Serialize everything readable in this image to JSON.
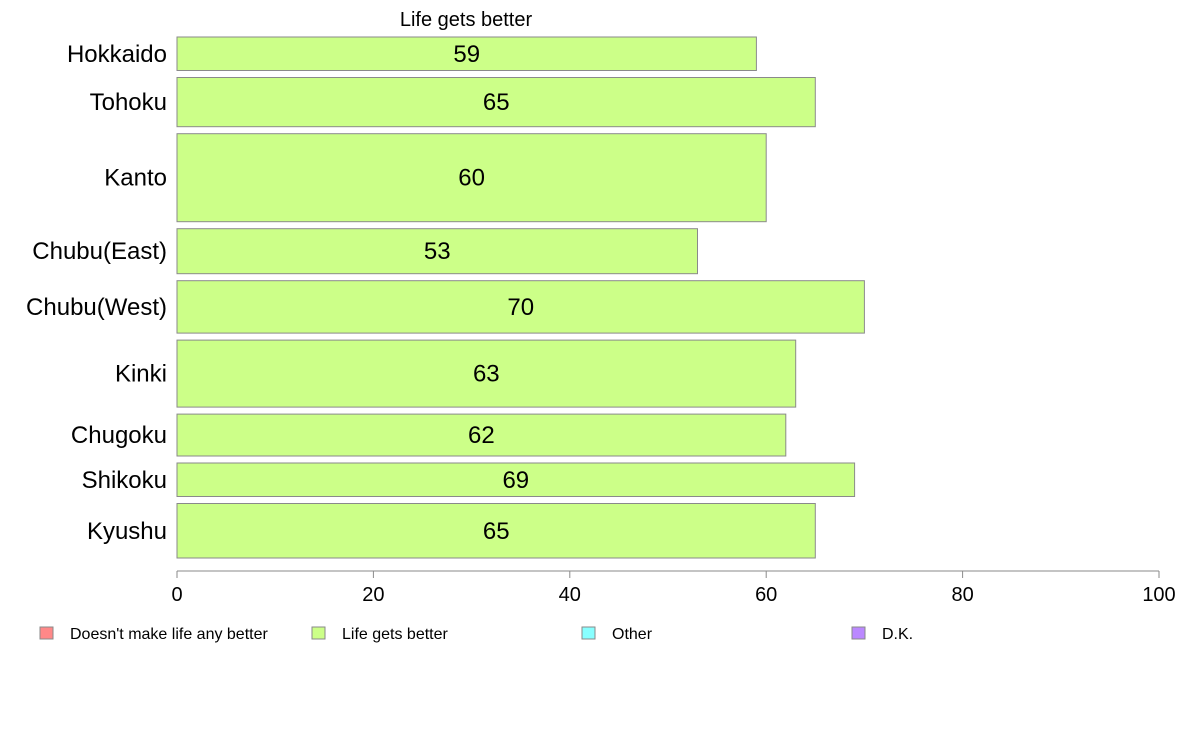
{
  "chart_data": {
    "type": "bar",
    "orientation": "horizontal",
    "title": "Life gets better",
    "xlabel": "",
    "ylabel": "",
    "xlim": [
      0,
      100
    ],
    "x_ticks": [
      "0",
      "20",
      "40",
      "60",
      "80",
      "100"
    ],
    "grid": false,
    "categories": [
      "Hokkaido",
      "Tohoku",
      "Kanto",
      "Chubu(East)",
      "Chubu(West)",
      "Kinki",
      "Chugoku",
      "Shikoku",
      "Kyushu"
    ],
    "category_weights": [
      32,
      47,
      84,
      43,
      50,
      64,
      40,
      32,
      52
    ],
    "series": [
      {
        "name": "Life gets better",
        "color": "#ccff88",
        "values": [
          59,
          65,
          60,
          53,
          70,
          63,
          62,
          69,
          65
        ],
        "value_labels": [
          "59",
          "65",
          "60",
          "53",
          "70",
          "63",
          "62",
          "69",
          "65"
        ]
      }
    ],
    "legend": {
      "placement": "bottom",
      "items": [
        {
          "label": "Doesn't make life any better",
          "color": "#ff8888"
        },
        {
          "label": "Life gets better",
          "color": "#ccff88"
        },
        {
          "label": "Other",
          "color": "#88ffff"
        },
        {
          "label": "D.K.",
          "color": "#bb88ff"
        }
      ]
    }
  }
}
